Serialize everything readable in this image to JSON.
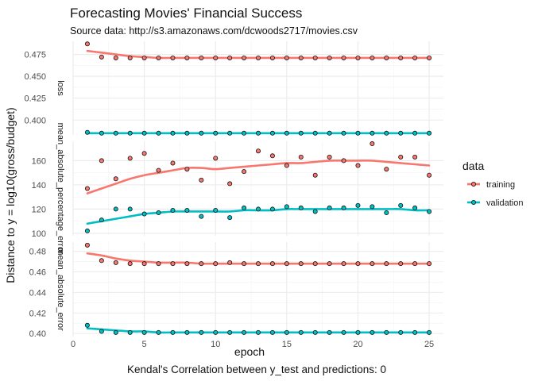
{
  "chart_data": {
    "type": "line",
    "title": "Forecasting Movies' Financial Success",
    "subtitle": "Source data: http://s3.amazonaws.com/dcwoods2717/movies.csv",
    "xlabel": "epoch",
    "ylabel": "Distance to y = log10(gross/budget)",
    "caption": "Kendal's Correlation between y_test and predictions: 0",
    "legend_title": "data",
    "legend_position": "right",
    "grid": true,
    "x": [
      1,
      2,
      3,
      4,
      5,
      6,
      7,
      8,
      9,
      10,
      11,
      12,
      13,
      14,
      15,
      16,
      17,
      18,
      19,
      20,
      21,
      22,
      23,
      24,
      25
    ],
    "xlim": [
      0,
      26
    ],
    "xticks": [
      0,
      5,
      10,
      15,
      20,
      25
    ],
    "series_names": [
      "training",
      "validation"
    ],
    "series_colors": [
      "#F8766D",
      "#00BFC4"
    ],
    "panels": [
      {
        "strip": "loss",
        "ylim": [
          0.383,
          0.49
        ],
        "yticks": [
          0.4,
          0.425,
          0.45,
          0.475
        ],
        "ytick_labels": [
          "0.400",
          "0.425",
          "0.450",
          "0.475"
        ],
        "series": [
          {
            "name": "training",
            "values": [
              0.487,
              0.472,
              0.471,
              0.471,
              0.471,
              0.471,
              0.471,
              0.471,
              0.471,
              0.471,
              0.471,
              0.471,
              0.471,
              0.471,
              0.471,
              0.471,
              0.471,
              0.471,
              0.471,
              0.471,
              0.471,
              0.471,
              0.471,
              0.471,
              0.471
            ],
            "smooth": [
              0.479,
              0.477,
              0.475,
              0.473,
              0.472,
              0.471,
              0.471,
              0.471,
              0.471,
              0.471,
              0.471,
              0.471,
              0.471,
              0.471,
              0.471,
              0.471,
              0.471,
              0.471,
              0.471,
              0.471,
              0.471,
              0.471,
              0.471,
              0.471,
              0.471
            ]
          },
          {
            "name": "validation",
            "values": [
              0.386,
              0.385,
              0.385,
              0.385,
              0.385,
              0.385,
              0.385,
              0.385,
              0.385,
              0.385,
              0.385,
              0.385,
              0.385,
              0.385,
              0.385,
              0.385,
              0.385,
              0.385,
              0.385,
              0.385,
              0.385,
              0.385,
              0.385,
              0.385,
              0.385
            ],
            "smooth": [
              0.385,
              0.385,
              0.385,
              0.385,
              0.385,
              0.385,
              0.385,
              0.385,
              0.385,
              0.385,
              0.385,
              0.385,
              0.385,
              0.385,
              0.385,
              0.385,
              0.385,
              0.385,
              0.385,
              0.385,
              0.385,
              0.385,
              0.385,
              0.385,
              0.385
            ]
          }
        ]
      },
      {
        "strip": "mean_absolute_percentage_error",
        "ylim": [
          98,
          176
        ],
        "yticks": [
          100,
          120,
          140,
          160
        ],
        "ytick_labels": [
          "100",
          "120",
          "140",
          "160"
        ],
        "series": [
          {
            "name": "training",
            "values": [
              137,
              160,
              145,
              162,
              166,
              152,
              158,
              153,
              144,
              162,
              141,
              151,
              168,
              164,
              156,
              163,
              148,
              163,
              160,
              156,
              174,
              153,
              163,
              163,
              148
            ],
            "smooth": [
              133,
              137,
              141,
              145,
              148,
              150,
              152,
              154,
              154,
              153,
              154,
              155,
              156,
              157,
              158,
              158,
              159,
              160,
              160,
              160,
              160,
              159,
              158,
              157,
              156
            ]
          },
          {
            "name": "validation",
            "values": [
              102,
              111,
              120,
              120,
              116,
              117,
              119,
              119,
              114,
              119,
              113,
              121,
              120,
              120,
              122,
              121,
              118,
              121,
              121,
              123,
              122,
              117,
              123,
              121,
              118
            ],
            "smooth": [
              108,
              110,
              112,
              114,
              116,
              117,
              118,
              118,
              118,
              118,
              118,
              119,
              119,
              119,
              120,
              120,
              120,
              120,
              120,
              120,
              120,
              120,
              120,
              119,
              119
            ]
          }
        ]
      },
      {
        "strip": "mean_absolute_error",
        "ylim": [
          0.397,
          0.489
        ],
        "yticks": [
          0.4,
          0.42,
          0.44,
          0.46,
          0.48
        ],
        "ytick_labels": [
          "0.40",
          "0.42",
          "0.44",
          "0.46",
          "0.48"
        ],
        "series": [
          {
            "name": "training",
            "values": [
              0.486,
              0.471,
              0.469,
              0.468,
              0.468,
              0.468,
              0.468,
              0.468,
              0.468,
              0.468,
              0.469,
              0.468,
              0.468,
              0.468,
              0.468,
              0.468,
              0.468,
              0.468,
              0.468,
              0.468,
              0.468,
              0.468,
              0.468,
              0.468,
              0.468
            ],
            "smooth": [
              0.478,
              0.476,
              0.473,
              0.471,
              0.47,
              0.469,
              0.469,
              0.469,
              0.468,
              0.468,
              0.468,
              0.468,
              0.468,
              0.468,
              0.468,
              0.468,
              0.468,
              0.468,
              0.468,
              0.468,
              0.468,
              0.468,
              0.468,
              0.468,
              0.468
            ]
          },
          {
            "name": "validation",
            "values": [
              0.408,
              0.402,
              0.401,
              0.401,
              0.401,
              0.401,
              0.401,
              0.401,
              0.401,
              0.401,
              0.401,
              0.401,
              0.401,
              0.401,
              0.401,
              0.401,
              0.401,
              0.401,
              0.401,
              0.401,
              0.401,
              0.401,
              0.401,
              0.401,
              0.401
            ],
            "smooth": [
              0.405,
              0.404,
              0.403,
              0.402,
              0.402,
              0.401,
              0.401,
              0.401,
              0.401,
              0.401,
              0.401,
              0.401,
              0.401,
              0.401,
              0.401,
              0.401,
              0.401,
              0.401,
              0.401,
              0.401,
              0.401,
              0.401,
              0.401,
              0.401,
              0.401
            ]
          }
        ]
      }
    ]
  }
}
